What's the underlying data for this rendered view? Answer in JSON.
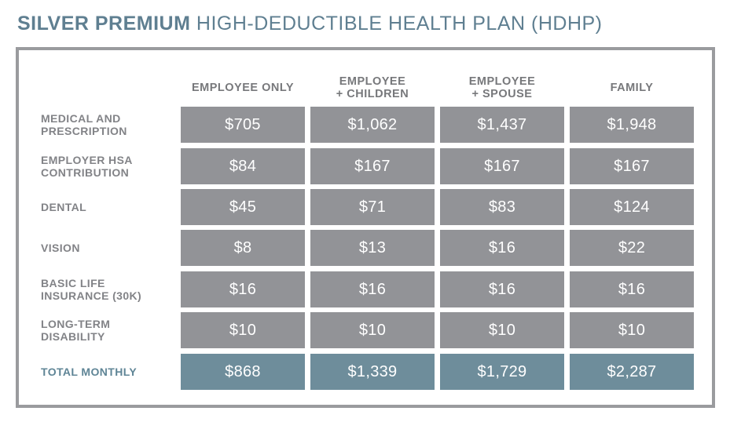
{
  "title": {
    "bold": "SILVER PREMIUM",
    "light": "HIGH-DEDUCTIBLE HEALTH PLAN (HDHP)"
  },
  "columns": [
    "EMPLOYEE ONLY",
    "EMPLOYEE\n+ CHILDREN",
    "EMPLOYEE\n+ SPOUSE",
    "FAMILY"
  ],
  "rows": [
    {
      "label": "MEDICAL AND\nPRESCRIPTION",
      "values": [
        "$705",
        "$1,062",
        "$1,437",
        "$1,948"
      ]
    },
    {
      "label": "EMPLOYER HSA\nCONTRIBUTION",
      "values": [
        "$84",
        "$167",
        "$167",
        "$167"
      ]
    },
    {
      "label": "DENTAL",
      "values": [
        "$45",
        "$71",
        "$83",
        "$124"
      ]
    },
    {
      "label": "VISION",
      "values": [
        "$8",
        "$13",
        "$16",
        "$22"
      ]
    },
    {
      "label": "BASIC LIFE\nINSURANCE (30K)",
      "values": [
        "$16",
        "$16",
        "$16",
        "$16"
      ]
    },
    {
      "label": "LONG-TERM\nDISABILITY",
      "values": [
        "$10",
        "$10",
        "$10",
        "$10"
      ]
    },
    {
      "label": "TOTAL MONTHLY",
      "values": [
        "$868",
        "$1,339",
        "$1,729",
        "$2,287"
      ],
      "is_total": true
    }
  ],
  "colors": {
    "title": "#5f7f91",
    "frame_border": "#9a9b9e",
    "cell": "#929397",
    "total_cell": "#6e8d9b",
    "header_text": "#77787b",
    "label_text": "#828387",
    "total_label_text": "#5f8596"
  }
}
